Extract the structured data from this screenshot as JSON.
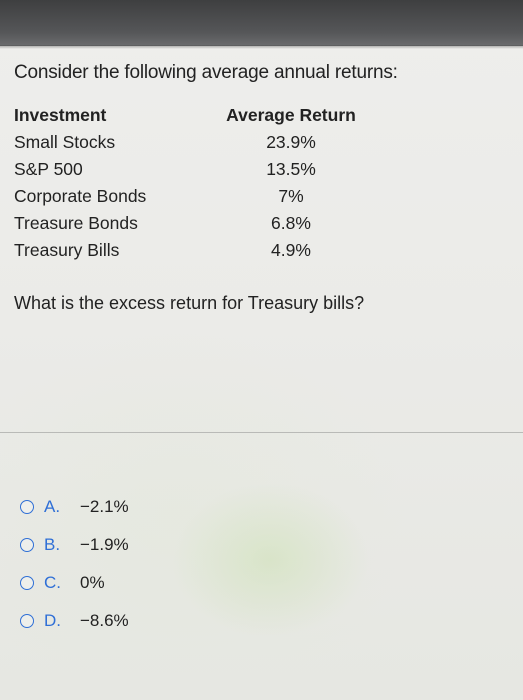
{
  "question": {
    "title": "Consider the following average annual returns:",
    "prompt": "What is the excess return for Treasury bills?"
  },
  "table": {
    "headers": {
      "investment": "Investment",
      "return": "Average Return"
    },
    "rows": [
      {
        "investment": "Small Stocks",
        "return": "23.9%"
      },
      {
        "investment": "S&P 500",
        "return": "13.5%"
      },
      {
        "investment": "Corporate Bonds",
        "return": "7%"
      },
      {
        "investment": "Treasure Bonds",
        "return": "6.8%"
      },
      {
        "investment": "Treasury Bills",
        "return": "4.9%"
      }
    ]
  },
  "options": [
    {
      "letter": "A.",
      "value": "−2.1%"
    },
    {
      "letter": "B.",
      "value": "−1.9%"
    },
    {
      "letter": "C.",
      "value": "0%"
    },
    {
      "letter": "D.",
      "value": "−8.6%"
    }
  ],
  "colors": {
    "accent": "#2f6fd6",
    "text": "#222222",
    "top_bar": "#4a4b4c"
  }
}
